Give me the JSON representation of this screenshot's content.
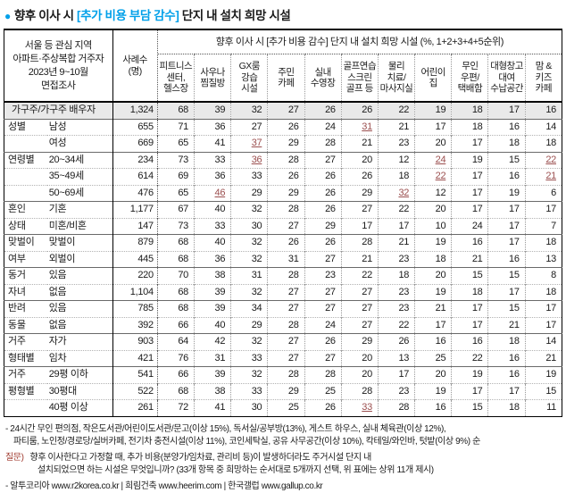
{
  "colors": {
    "accent_blue": "#00a0e9",
    "underline_value_color": "#9b4f4f",
    "question_label_color": "#a03a2e",
    "shaded_row_bg": "#e9e9e9"
  },
  "title": {
    "bullet": "●",
    "prefix": "향후 이사 시 ",
    "highlight": "[추가 비용 부담 감수]",
    "suffix": " 단지 내 설치 희망 시설"
  },
  "table": {
    "stub_header": "서울 등 관심 지역\n아파트·주상복합 거주자\n2023년 9~10월\n면접조사",
    "cases_header": "사례수\n(명)",
    "span_header": "향후 이사 시 [추가 비용 감수] 단지 내 설치 희망 시설 (%, 1+2+3+4+5순위)",
    "columns": [
      "피트니스\n센터,\n헬스장",
      "사우나\n찜질방",
      "GX룸\n강습\n시설",
      "주민\n카페",
      "실내\n수영장",
      "골프연습\n스크린\n골프 등",
      "물리\n치료/\n마사지실",
      "어린이\n집",
      "무인\n우편/\n택배함",
      "대형창고\n대여\n수납공간",
      "맘 &\n키즈\n카페"
    ],
    "rows": [
      {
        "full": true,
        "shaded": true,
        "group": "",
        "label": "가구주/가구주 배우자",
        "cases": "1,324",
        "values": [
          68,
          39,
          32,
          27,
          26,
          26,
          22,
          19,
          18,
          17,
          16
        ],
        "u": []
      },
      {
        "sep": true,
        "group": "성별",
        "label": "남성",
        "cases": "655",
        "values": [
          71,
          36,
          27,
          26,
          24,
          31,
          21,
          17,
          18,
          16,
          14
        ],
        "u": [
          5
        ]
      },
      {
        "group": "",
        "label": "여성",
        "cases": "669",
        "values": [
          65,
          41,
          37,
          29,
          28,
          21,
          23,
          20,
          17,
          18,
          18
        ],
        "u": [
          2
        ]
      },
      {
        "sep": true,
        "group": "연령별",
        "label": "20~34세",
        "cases": "234",
        "values": [
          73,
          33,
          36,
          28,
          27,
          20,
          12,
          24,
          19,
          15,
          22
        ],
        "u": [
          2,
          7,
          10
        ]
      },
      {
        "group": "",
        "label": "35~49세",
        "cases": "614",
        "values": [
          69,
          36,
          33,
          26,
          26,
          26,
          18,
          22,
          17,
          16,
          21
        ],
        "u": [
          7,
          10
        ]
      },
      {
        "group": "",
        "label": "50~69세",
        "cases": "476",
        "values": [
          65,
          46,
          29,
          29,
          26,
          29,
          32,
          12,
          17,
          19,
          6
        ],
        "u": [
          1,
          6
        ]
      },
      {
        "sep": true,
        "group": "혼인",
        "label": "기혼",
        "cases": "1,177",
        "values": [
          67,
          40,
          32,
          28,
          26,
          27,
          22,
          20,
          17,
          17,
          17
        ],
        "u": []
      },
      {
        "group": "상태",
        "label": "미혼/비혼",
        "cases": "147",
        "values": [
          73,
          33,
          30,
          27,
          29,
          17,
          17,
          10,
          24,
          17,
          7
        ],
        "u": []
      },
      {
        "sep": true,
        "group": "맞벌이",
        "label": "맞벌이",
        "cases": "879",
        "values": [
          68,
          40,
          32,
          26,
          26,
          28,
          21,
          19,
          16,
          17,
          18
        ],
        "u": []
      },
      {
        "group": "여부",
        "label": "외벌이",
        "cases": "445",
        "values": [
          68,
          36,
          32,
          31,
          27,
          21,
          23,
          18,
          21,
          16,
          13
        ],
        "u": []
      },
      {
        "sep": true,
        "group": "동거",
        "label": "있음",
        "cases": "220",
        "values": [
          70,
          38,
          31,
          28,
          23,
          22,
          18,
          20,
          15,
          15,
          8
        ],
        "u": []
      },
      {
        "group": "자녀",
        "label": "없음",
        "cases": "1,104",
        "values": [
          68,
          39,
          32,
          27,
          27,
          27,
          23,
          19,
          18,
          17,
          18
        ],
        "u": []
      },
      {
        "sep": true,
        "group": "반려",
        "label": "있음",
        "cases": "785",
        "values": [
          68,
          39,
          34,
          27,
          27,
          27,
          23,
          21,
          17,
          15,
          17
        ],
        "u": []
      },
      {
        "group": "동물",
        "label": "없음",
        "cases": "392",
        "values": [
          66,
          40,
          29,
          28,
          24,
          27,
          22,
          17,
          17,
          21,
          17
        ],
        "u": []
      },
      {
        "sep": true,
        "group": "거주",
        "label": "자가",
        "cases": "903",
        "values": [
          64,
          42,
          32,
          27,
          26,
          29,
          26,
          16,
          16,
          18,
          14
        ],
        "u": []
      },
      {
        "group": "형태별",
        "label": "임차",
        "cases": "421",
        "values": [
          76,
          31,
          33,
          27,
          27,
          20,
          13,
          25,
          22,
          16,
          21
        ],
        "u": []
      },
      {
        "sep": true,
        "group": "거주",
        "label": "29평 이하",
        "cases": "541",
        "values": [
          66,
          39,
          32,
          28,
          28,
          20,
          17,
          20,
          19,
          16,
          19
        ],
        "u": []
      },
      {
        "group": "평형별",
        "label": "30평대",
        "cases": "522",
        "values": [
          68,
          38,
          33,
          29,
          25,
          28,
          23,
          19,
          17,
          17,
          15
        ],
        "u": []
      },
      {
        "group": "",
        "label": "40평 이상",
        "cases": "261",
        "values": [
          72,
          41,
          30,
          25,
          26,
          33,
          28,
          16,
          15,
          18,
          11
        ],
        "u": [
          5
        ]
      }
    ]
  },
  "footnotes": {
    "line1": "- 24시간 무인 편의점, 작은도서관/어린이도서관/문고(이상 15%), 독서실/공부방(13%), 게스트 하우스, 실내 체육관(이상 12%),",
    "line2": "파티룸, 노인정/경로당/실버카페, 전기차 충전시설(이상 11%), 코인세탁실, 공유 사무공간(이상 10%), 칵테일/와인바, 텃밭(이상 9%) 순",
    "question_label": "질문)",
    "question_line1": "향후 이사한다고 가정할 때, 추가 비용(분양가/임차료, 관리비 등)이 발생하더라도 주거시설 단지 내",
    "question_line2": "설치되었으면 하는 시설은 무엇입니까? (33개 항목 중 희망하는 순서대로 5개까지 선택, 위 표에는 상위 11개 제시)",
    "sources": "- 알투코리아 www.r2korea.co.kr | 희림건축 www.heerim.com | 한국갤럽 www.gallup.co.kr"
  }
}
